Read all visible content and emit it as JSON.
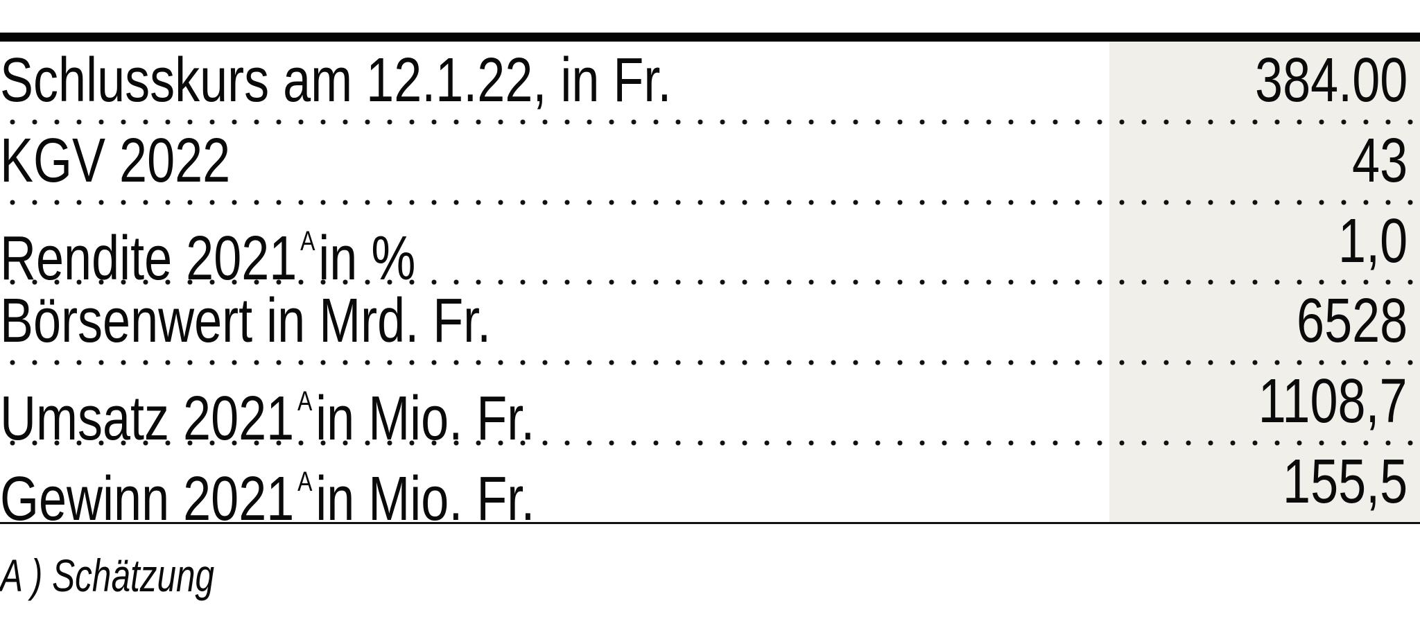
{
  "colors": {
    "value_column_bg": "#f0efea",
    "rule": "#050505"
  },
  "rows": [
    {
      "label": "Schlusskurs am 12.1.22, in Fr.",
      "sup": "",
      "label_rest": "",
      "value": "384.00"
    },
    {
      "label": "KGV 2022",
      "sup": "",
      "label_rest": "",
      "value": "43"
    },
    {
      "label": "Rendite 2021",
      "sup": "A",
      "label_rest": "in %",
      "value": "1,0"
    },
    {
      "label": "Börsenwert in Mrd. Fr.",
      "sup": "",
      "label_rest": "",
      "value": "6528"
    },
    {
      "label": "Umsatz 2021",
      "sup": "A",
      "label_rest": "in Mio. Fr.",
      "value": "1108,7"
    },
    {
      "label": "Gewinn 2021",
      "sup": "A",
      "label_rest": "in Mio. Fr.",
      "value": "155,5"
    }
  ],
  "footnote": "A ) Schätzung"
}
